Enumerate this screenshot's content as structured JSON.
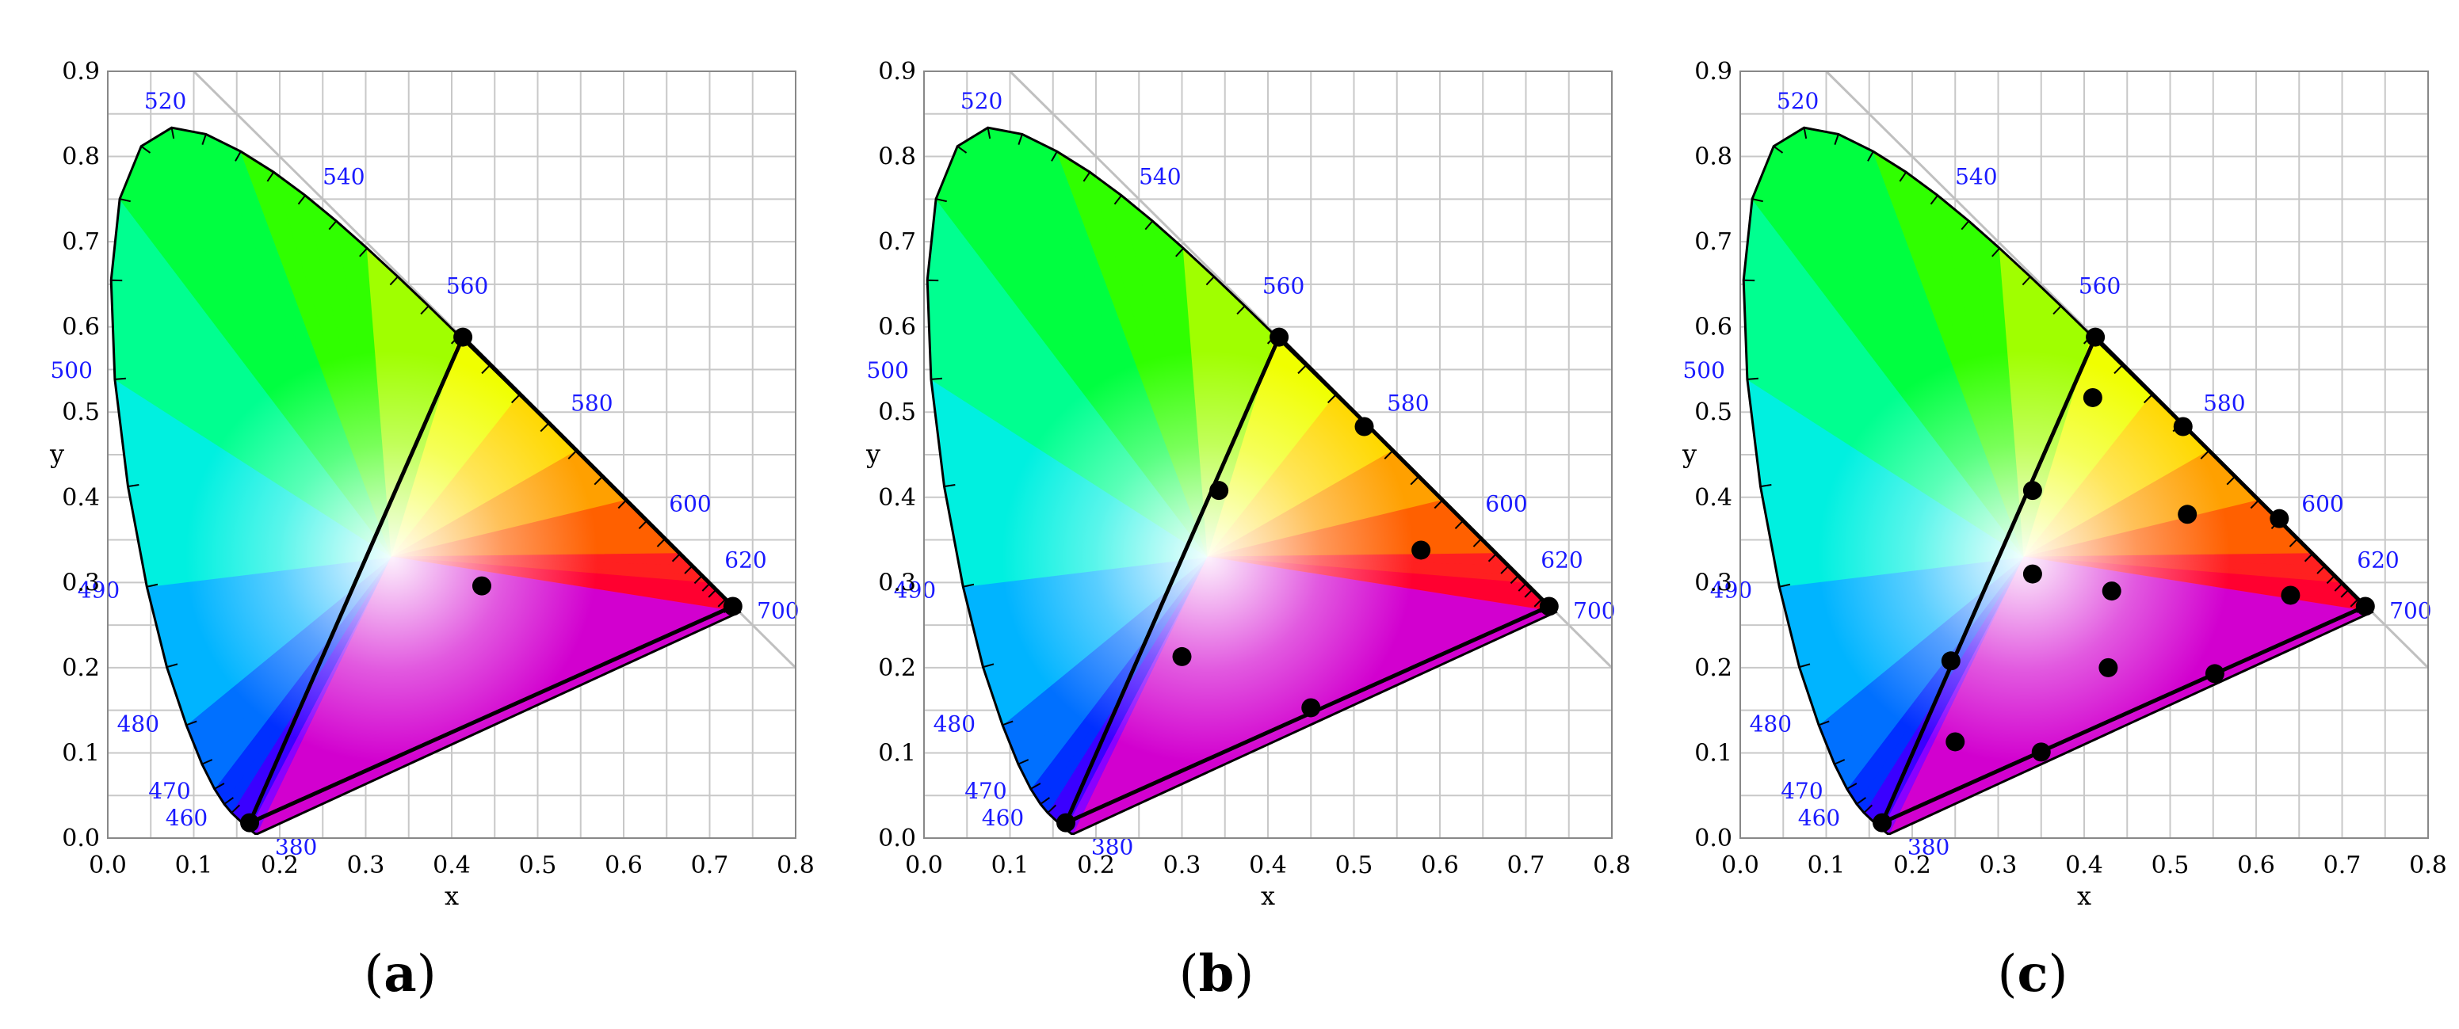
{
  "figure": {
    "panels": [
      {
        "id": "a",
        "caption": "a",
        "left": 0
      },
      {
        "id": "b",
        "caption": "b",
        "left": 1030
      },
      {
        "id": "c",
        "caption": "c",
        "left": 2060
      }
    ]
  },
  "chart_data": [
    {
      "type": "scatter",
      "subtype": "cie-1931-chromaticity-diagram",
      "caption": "(a)",
      "xlabel": "x",
      "ylabel": "y",
      "xlim": [
        0.0,
        0.8
      ],
      "ylim": [
        0.0,
        0.9
      ],
      "x_ticks": [
        "0.0",
        "0.1",
        "0.2",
        "0.3",
        "0.4",
        "0.5",
        "0.6",
        "0.7",
        "0.8"
      ],
      "y_ticks": [
        "0.0",
        "0.1",
        "0.2",
        "0.3",
        "0.4",
        "0.5",
        "0.6",
        "0.7",
        "0.8",
        "0.9"
      ],
      "grid": true,
      "wavelength_labels": [
        "380",
        "460",
        "470",
        "480",
        "490",
        "500",
        "520",
        "540",
        "560",
        "580",
        "600",
        "620",
        "700"
      ],
      "triangle_vertices": [
        [
          0.165,
          0.018
        ],
        [
          0.413,
          0.588
        ],
        [
          0.727,
          0.272
        ]
      ],
      "points": [
        [
          0.435,
          0.296
        ]
      ]
    },
    {
      "type": "scatter",
      "subtype": "cie-1931-chromaticity-diagram",
      "caption": "(b)",
      "xlabel": "x",
      "ylabel": "y",
      "xlim": [
        0.0,
        0.8
      ],
      "ylim": [
        0.0,
        0.9
      ],
      "x_ticks": [
        "0.0",
        "0.1",
        "0.2",
        "0.3",
        "0.4",
        "0.5",
        "0.6",
        "0.7",
        "0.8"
      ],
      "y_ticks": [
        "0.0",
        "0.1",
        "0.2",
        "0.3",
        "0.4",
        "0.5",
        "0.6",
        "0.7",
        "0.8",
        "0.9"
      ],
      "grid": true,
      "wavelength_labels": [
        "380",
        "460",
        "470",
        "480",
        "490",
        "500",
        "520",
        "540",
        "560",
        "580",
        "600",
        "620",
        "700"
      ],
      "triangle_vertices": [
        [
          0.165,
          0.018
        ],
        [
          0.413,
          0.588
        ],
        [
          0.727,
          0.272
        ]
      ],
      "points": [
        [
          0.343,
          0.408
        ],
        [
          0.512,
          0.483
        ],
        [
          0.578,
          0.338
        ],
        [
          0.3,
          0.213
        ],
        [
          0.45,
          0.153
        ]
      ]
    },
    {
      "type": "scatter",
      "subtype": "cie-1931-chromaticity-diagram",
      "caption": "(c)",
      "xlabel": "x",
      "ylabel": "y",
      "xlim": [
        0.0,
        0.8
      ],
      "ylim": [
        0.0,
        0.9
      ],
      "x_ticks": [
        "0.0",
        "0.1",
        "0.2",
        "0.3",
        "0.4",
        "0.5",
        "0.6",
        "0.7",
        "0.8"
      ],
      "y_ticks": [
        "0.0",
        "0.1",
        "0.2",
        "0.3",
        "0.4",
        "0.5",
        "0.6",
        "0.7",
        "0.8",
        "0.9"
      ],
      "grid": true,
      "wavelength_labels": [
        "380",
        "460",
        "470",
        "480",
        "490",
        "500",
        "520",
        "540",
        "560",
        "580",
        "600",
        "620",
        "700"
      ],
      "triangle_vertices": [
        [
          0.165,
          0.018
        ],
        [
          0.413,
          0.588
        ],
        [
          0.727,
          0.272
        ]
      ],
      "points": [
        [
          0.41,
          0.517
        ],
        [
          0.515,
          0.483
        ],
        [
          0.34,
          0.408
        ],
        [
          0.52,
          0.38
        ],
        [
          0.627,
          0.375
        ],
        [
          0.34,
          0.31
        ],
        [
          0.432,
          0.29
        ],
        [
          0.64,
          0.285
        ],
        [
          0.245,
          0.208
        ],
        [
          0.428,
          0.2
        ],
        [
          0.552,
          0.193
        ],
        [
          0.25,
          0.113
        ],
        [
          0.35,
          0.101
        ]
      ]
    }
  ],
  "colors": {
    "grid": "#c8c8c8",
    "axis": "#888888",
    "tick_label": "#000000",
    "wavelength_label": "#1a1aff",
    "locus": "#000000",
    "point": "#000000",
    "diagonal": "#c0c0c0"
  }
}
